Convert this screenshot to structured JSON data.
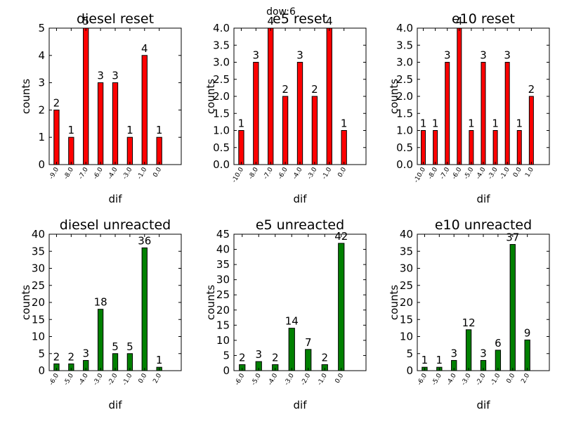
{
  "suptitle": "dow:6",
  "chart_data": [
    {
      "type": "bar",
      "title": "diesel reset",
      "xlabel": "dif",
      "ylabel": "counts",
      "categories": [
        "-9.0",
        "-8.0",
        "-7.0",
        "-6.0",
        "-4.0",
        "-3.0",
        "-1.0",
        "0.0"
      ],
      "values": [
        2,
        1,
        5,
        3,
        3,
        1,
        4,
        1
      ],
      "data_labels": [
        "2",
        "1",
        "5",
        "3",
        "3",
        "1",
        "4",
        "1"
      ],
      "ylim": [
        0,
        5
      ],
      "yticks": [
        "0",
        "1",
        "2",
        "3",
        "4",
        "5"
      ],
      "color": "#ff0000"
    },
    {
      "type": "bar",
      "title": "e5 reset",
      "xlabel": "dif",
      "ylabel": "counts",
      "categories": [
        "-10.0",
        "-8.0",
        "-7.0",
        "-6.0",
        "-4.0",
        "-3.0",
        "-1.0",
        "0.0"
      ],
      "values": [
        1,
        3,
        4,
        2,
        3,
        2,
        4,
        1
      ],
      "data_labels": [
        "1",
        "3",
        "4",
        "2",
        "3",
        "2",
        "4",
        "1"
      ],
      "ylim": [
        0,
        4
      ],
      "yticks": [
        "0.0",
        "0.5",
        "1.0",
        "1.5",
        "2.0",
        "2.5",
        "3.0",
        "3.5",
        "4.0"
      ],
      "color": "#ff0000"
    },
    {
      "type": "bar",
      "title": "e10 reset",
      "xlabel": "dif",
      "ylabel": "counts",
      "categories": [
        "-10.0",
        "-8.0",
        "-7.0",
        "-6.0",
        "-5.0",
        "-4.0",
        "-3.0",
        "-1.0",
        "0.0",
        "1.0"
      ],
      "values": [
        1,
        1,
        3,
        4,
        1,
        3,
        1,
        3,
        1,
        2
      ],
      "data_labels": [
        "1",
        "1",
        "3",
        "4",
        "1",
        "3",
        "1",
        "3",
        "1",
        "2"
      ],
      "ylim": [
        0,
        4
      ],
      "yticks": [
        "0.0",
        "0.5",
        "1.0",
        "1.5",
        "2.0",
        "2.5",
        "3.0",
        "3.5",
        "4.0"
      ],
      "color": "#ff0000"
    },
    {
      "type": "bar",
      "title": "diesel unreacted",
      "xlabel": "dif",
      "ylabel": "counts",
      "categories": [
        "-6.0",
        "-5.0",
        "-4.0",
        "-3.0",
        "-2.0",
        "-1.0",
        "0.0",
        "2.0"
      ],
      "values": [
        2,
        2,
        3,
        18,
        5,
        5,
        36,
        1
      ],
      "data_labels": [
        "2",
        "2",
        "3",
        "18",
        "5",
        "5",
        "36",
        "1"
      ],
      "ylim": [
        0,
        40
      ],
      "yticks": [
        "0",
        "5",
        "10",
        "15",
        "20",
        "25",
        "30",
        "35",
        "40"
      ],
      "color": "#008000"
    },
    {
      "type": "bar",
      "title": "e5 unreacted",
      "xlabel": "dif",
      "ylabel": "counts",
      "categories": [
        "-6.0",
        "-5.0",
        "-4.0",
        "-3.0",
        "-2.0",
        "-1.0",
        "0.0"
      ],
      "values": [
        2,
        3,
        2,
        14,
        7,
        2,
        42
      ],
      "data_labels": [
        "2",
        "3",
        "2",
        "14",
        "7",
        "2",
        "42"
      ],
      "ylim": [
        0,
        45
      ],
      "yticks": [
        "0",
        "5",
        "10",
        "15",
        "20",
        "25",
        "30",
        "35",
        "40",
        "45"
      ],
      "color": "#008000"
    },
    {
      "type": "bar",
      "title": "e10 unreacted",
      "xlabel": "dif",
      "ylabel": "counts",
      "categories": [
        "-6.0",
        "-5.0",
        "-4.0",
        "-3.0",
        "-2.0",
        "-1.0",
        "0.0",
        "2.0"
      ],
      "values": [
        1,
        1,
        3,
        12,
        3,
        6,
        37,
        9
      ],
      "data_labels": [
        "1",
        "1",
        "3",
        "12",
        "3",
        "6",
        "37",
        "9"
      ],
      "ylim": [
        0,
        40
      ],
      "yticks": [
        "0",
        "5",
        "10",
        "15",
        "20",
        "25",
        "30",
        "35",
        "40"
      ],
      "color": "#008000"
    }
  ]
}
